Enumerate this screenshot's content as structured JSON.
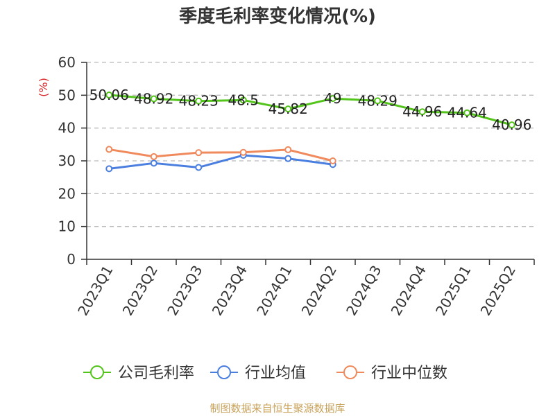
{
  "chart_data": {
    "type": "line",
    "title": "季度毛利率变化情况(%)",
    "ylabel": "(%)",
    "categories": [
      "2023Q1",
      "2023Q2",
      "2023Q3",
      "2023Q4",
      "2024Q1",
      "2024Q2",
      "2024Q3",
      "2024Q4",
      "2025Q1",
      "2025Q2"
    ],
    "ylim": [
      0,
      60
    ],
    "yticks": [
      0,
      10,
      20,
      30,
      40,
      50,
      60
    ],
    "grid": true,
    "legend_position": "bottom",
    "series": [
      {
        "name": "公司毛利率",
        "color": "#52c41a",
        "values": [
          50.06,
          48.92,
          48.23,
          48.5,
          45.82,
          49,
          48.29,
          44.96,
          44.64,
          40.96
        ],
        "labels": [
          "50.06",
          "48.92",
          "48.23",
          "48.5",
          "45.82",
          "49",
          "48.29",
          "44.96",
          "44.64",
          "40.96"
        ]
      },
      {
        "name": "行业均值",
        "color": "#4a7fe0",
        "values": [
          27.6,
          29.3,
          28.0,
          31.7,
          30.7,
          28.9,
          null,
          null,
          null,
          null
        ]
      },
      {
        "name": "行业中位数",
        "color": "#f08a5d",
        "values": [
          33.5,
          31.3,
          32.5,
          32.6,
          33.4,
          30.0,
          null,
          null,
          null,
          null
        ]
      }
    ]
  },
  "source": "制图数据来自恒生聚源数据库"
}
